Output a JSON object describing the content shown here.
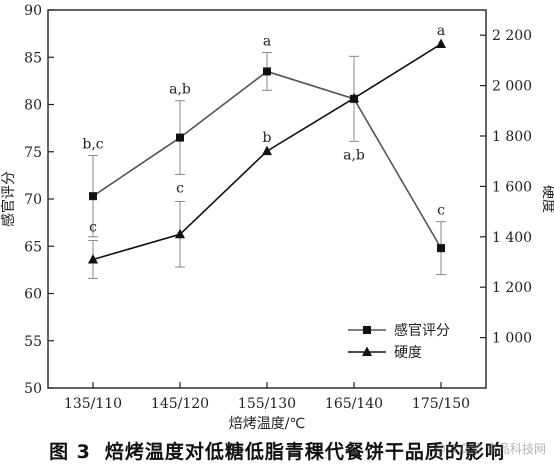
{
  "caption": {
    "figure_number": "图 3",
    "title": "焙烤温度对低糖低脂青稞代餐饼干品质的影响"
  },
  "watermark": "@公众号 食品科技网",
  "chart_data": {
    "type": "line",
    "xlabel": "焙烤温度/℃",
    "ylabel_left": "感官评分",
    "ylabel_right": "硬度",
    "categories": [
      "135/110",
      "145/120",
      "155/130",
      "165/140",
      "175/150"
    ],
    "ylim_left": [
      50,
      90
    ],
    "yticks_left": [
      "50",
      "55",
      "60",
      "65",
      "70",
      "75",
      "80",
      "85",
      "90"
    ],
    "ylim_right": [
      800,
      2300
    ],
    "yticks_right": [
      {
        "value": 1000,
        "label": "1 000"
      },
      {
        "value": 1200,
        "label": "1 200"
      },
      {
        "value": 1400,
        "label": "1 400"
      },
      {
        "value": 1600,
        "label": "1 600"
      },
      {
        "value": 1800,
        "label": "1 800"
      },
      {
        "value": 2000,
        "label": "2 000"
      },
      {
        "value": 2200,
        "label": "2 200"
      }
    ],
    "legend_position": "lower-right",
    "series": [
      {
        "name": "感官评分",
        "axis": "left",
        "marker": "square",
        "color": "#555555",
        "values": [
          70.3,
          76.5,
          83.5,
          80.6,
          64.8
        ],
        "errors": [
          4.3,
          3.9,
          2.0,
          4.5,
          2.8
        ],
        "letters": [
          "b,c",
          "a,b",
          "a",
          "a,b",
          "c"
        ]
      },
      {
        "name": "硬度",
        "axis": "right",
        "marker": "triangle",
        "color": "#111111",
        "values": [
          1310,
          1410,
          1740,
          1950,
          2165
        ],
        "errors": [
          75,
          130,
          0,
          0,
          0
        ],
        "letters": [
          "c",
          "c",
          "b",
          "",
          "a"
        ]
      }
    ]
  }
}
